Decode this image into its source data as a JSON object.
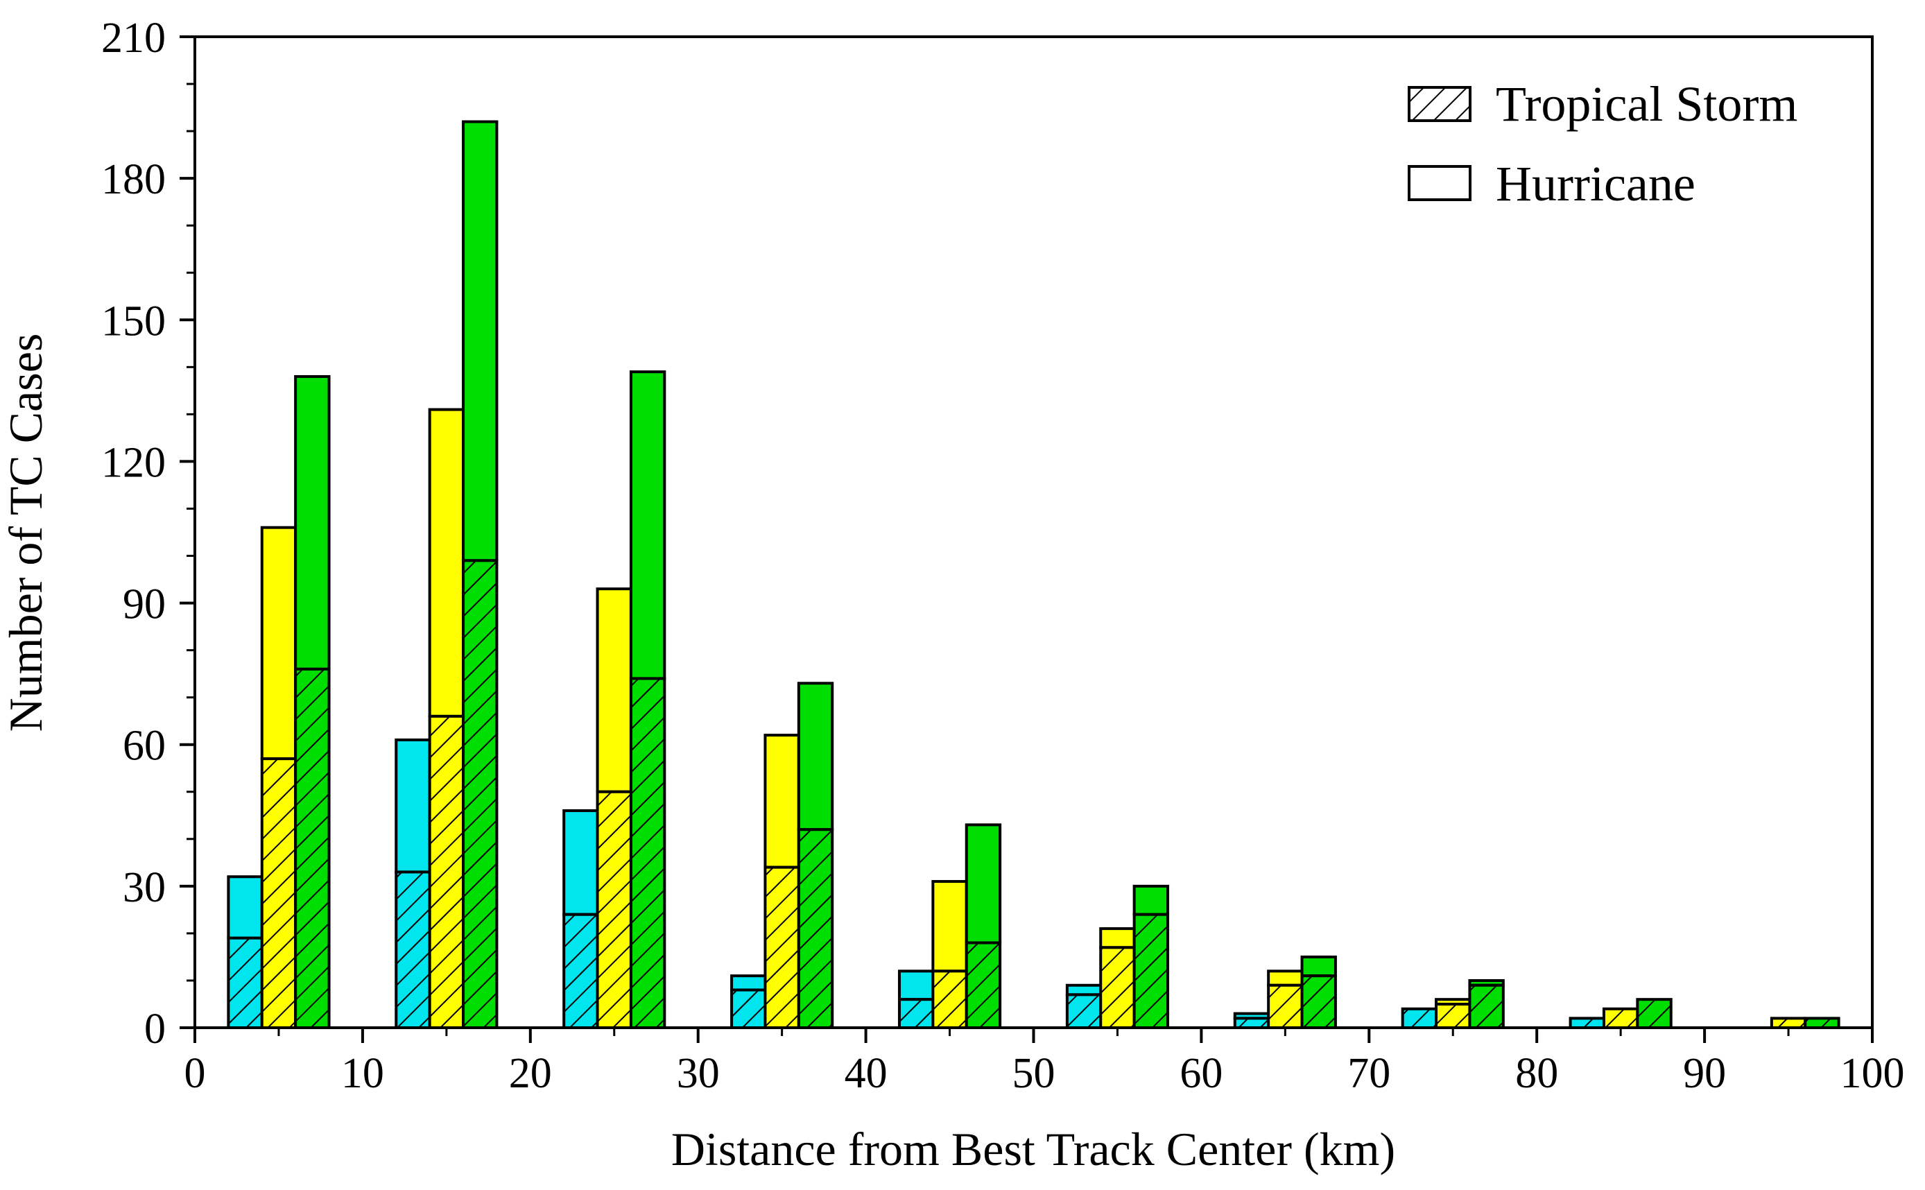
{
  "chart_data": {
    "type": "bar",
    "stacked": true,
    "title": "",
    "xlabel": "Distance from Best Track Center (km)",
    "ylabel": "Number of TC Cases",
    "xlim": [
      0,
      100
    ],
    "ylim": [
      0,
      210
    ],
    "xticks": [
      0,
      10,
      20,
      30,
      40,
      50,
      60,
      70,
      80,
      90,
      100
    ],
    "yticks": [
      0,
      30,
      60,
      90,
      120,
      150,
      180,
      210
    ],
    "grid": false,
    "legend_position": "top-right",
    "legend": [
      {
        "label": "Tropical Storm",
        "pattern": "hatched"
      },
      {
        "label": "Hurricane",
        "pattern": "solid"
      }
    ],
    "colors": {
      "cyan": "#00e5ee",
      "yellow": "#ffff00",
      "green": "#00dd00"
    },
    "bins": [
      5,
      15,
      25,
      35,
      45,
      55,
      65,
      75,
      85,
      95
    ],
    "series": [
      {
        "color": "cyan",
        "x": [
          3,
          13,
          23,
          33,
          43,
          53,
          63,
          73,
          83,
          93
        ],
        "tropical_storm": [
          19,
          33,
          24,
          8,
          6,
          7,
          2,
          4,
          2,
          0
        ],
        "total": [
          32,
          61,
          46,
          11,
          12,
          9,
          3,
          4,
          2,
          0
        ]
      },
      {
        "color": "yellow",
        "x": [
          5,
          15,
          25,
          35,
          45,
          55,
          65,
          75,
          85,
          95
        ],
        "tropical_storm": [
          57,
          66,
          50,
          34,
          12,
          17,
          9,
          5,
          4,
          2
        ],
        "total": [
          106,
          131,
          93,
          62,
          31,
          21,
          12,
          6,
          4,
          2
        ]
      },
      {
        "color": "green",
        "x": [
          7,
          17,
          27,
          37,
          47,
          57,
          67,
          77,
          87,
          97
        ],
        "tropical_storm": [
          76,
          99,
          74,
          42,
          18,
          24,
          11,
          9,
          6,
          2
        ],
        "total": [
          138,
          192,
          139,
          73,
          43,
          30,
          15,
          10,
          6,
          2
        ]
      }
    ]
  }
}
